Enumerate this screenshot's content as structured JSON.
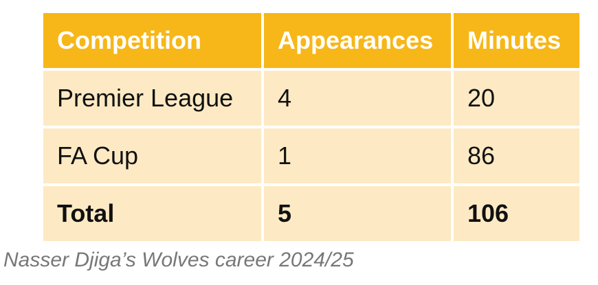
{
  "table": {
    "header": [
      "Competition",
      "Appearances",
      "Minutes"
    ],
    "rows": [
      [
        "Premier League",
        "4",
        "20"
      ],
      [
        "FA Cup",
        "1",
        "86"
      ]
    ],
    "total": [
      "Total",
      "5",
      "106"
    ]
  },
  "caption": "Nasser Djiga’s Wolves career 2024/25"
}
